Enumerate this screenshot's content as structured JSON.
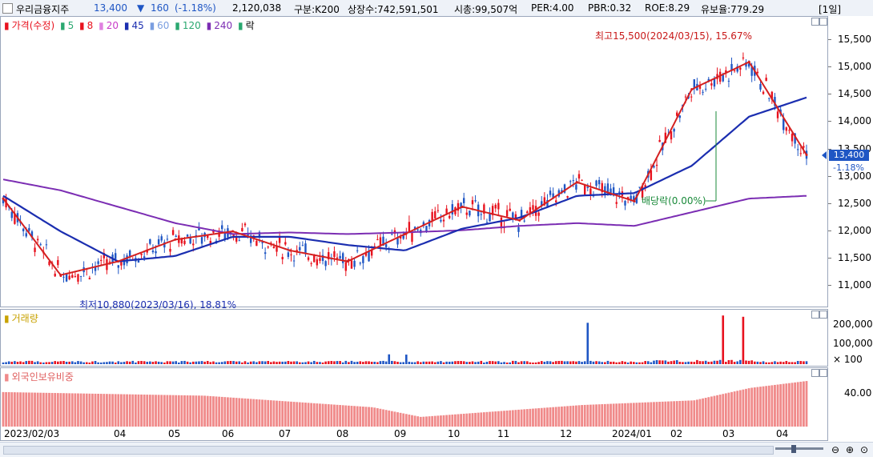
{
  "header": {
    "stock_name": "우리금융지주",
    "price": "13,400",
    "change_arrow": "▼",
    "change": "160",
    "change_pct": "(-1.18%)",
    "volume": "2,120,038",
    "category": "구분:K200",
    "listed_shares": "상장수:742,591,501",
    "market_cap": "시총:99,507억",
    "per": "PER:4.00",
    "pbr": "PBR:0.32",
    "roe": "ROE:8.29",
    "reserve_ratio": "유보율:779.29",
    "period": "[1일]"
  },
  "colors": {
    "up": "#e8121e",
    "down": "#1f56c4",
    "ma5": "#d42020",
    "ma20": "#c83ac8",
    "ma45": "#1b2eb0",
    "ma60": "#7a9ee0",
    "ma120": "#2aa870",
    "ma240": "#7b2db3",
    "foreign": "#f08a8a"
  },
  "price_panel": {
    "legend": {
      "title": "가격(수정)",
      "ma5": "5",
      "ma8": "8",
      "ma20": "20",
      "ma45": "45",
      "ma60": "60",
      "ma120": "120",
      "ma240": "240",
      "drop": "락"
    },
    "annotations": {
      "high": "최고15,500(2024/03/15), 15.67%",
      "low": "최저10,880(2023/03/16), 18.81%",
      "ex_rights": "배당락(0.00%)"
    },
    "current_price_tag": "13,400",
    "current_pct_tag": "-1.18%"
  },
  "volume_panel": {
    "title": "거래량"
  },
  "foreign_panel": {
    "title": "외국인보유비중"
  },
  "x_axis_labels": [
    "2023/02/03",
    "04",
    "05",
    "06",
    "07",
    "08",
    "09",
    "10",
    "11",
    "12",
    "2024/01",
    "02",
    "03",
    "04"
  ],
  "chart_data": [
    {
      "type": "line",
      "title": "가격(수정)",
      "y_ticks": [
        "15,500",
        "15,000",
        "14,500",
        "14,000",
        "13,500",
        "13,000",
        "12,500",
        "12,000",
        "11,500",
        "11,000"
      ],
      "ylim": [
        10800,
        15750
      ],
      "x": [
        "2023/02",
        "2023/03",
        "2023/04",
        "2023/05",
        "2023/06",
        "2023/07",
        "2023/08",
        "2023/09",
        "2023/10",
        "2023/11",
        "2023/12",
        "2024/01",
        "2024/02",
        "2024/03",
        "2024/04"
      ],
      "series": [
        {
          "name": "가격(수정)",
          "values": [
            12600,
            11200,
            11450,
            11850,
            12000,
            11650,
            11450,
            11950,
            12450,
            12200,
            12900,
            12550,
            14600,
            15100,
            13400
          ]
        },
        {
          "name": "45",
          "values": [
            12650,
            12000,
            11450,
            11550,
            11900,
            11900,
            11750,
            11650,
            12050,
            12250,
            12650,
            12700,
            13200,
            14100,
            14450
          ]
        },
        {
          "name": "240",
          "values": [
            12950,
            12750,
            12450,
            12150,
            11950,
            11980,
            11950,
            11980,
            12020,
            12100,
            12150,
            12100,
            12350,
            12600,
            12650
          ]
        }
      ]
    },
    {
      "type": "bar",
      "title": "거래량",
      "y_ticks": [
        "200,000",
        "100,000",
        "× 100"
      ],
      "spikes": [
        {
          "x": "2023/08",
          "value": 50000
        },
        {
          "x": "2023/12",
          "value": 210000
        },
        {
          "x": "2024/03",
          "value": 190000
        },
        {
          "x": "2024/03",
          "value": 185000
        }
      ]
    },
    {
      "type": "bar",
      "title": "외국인보유비중",
      "y_ticks": [
        "40.00"
      ],
      "x": [
        "2023/02",
        "2023/05",
        "2023/08",
        "2023/09",
        "2023/12",
        "2024/02",
        "2024/03",
        "2024/04"
      ],
      "values": [
        40.5,
        39.2,
        35.0,
        31.5,
        35.8,
        37.5,
        42.0,
        44.5
      ]
    }
  ]
}
